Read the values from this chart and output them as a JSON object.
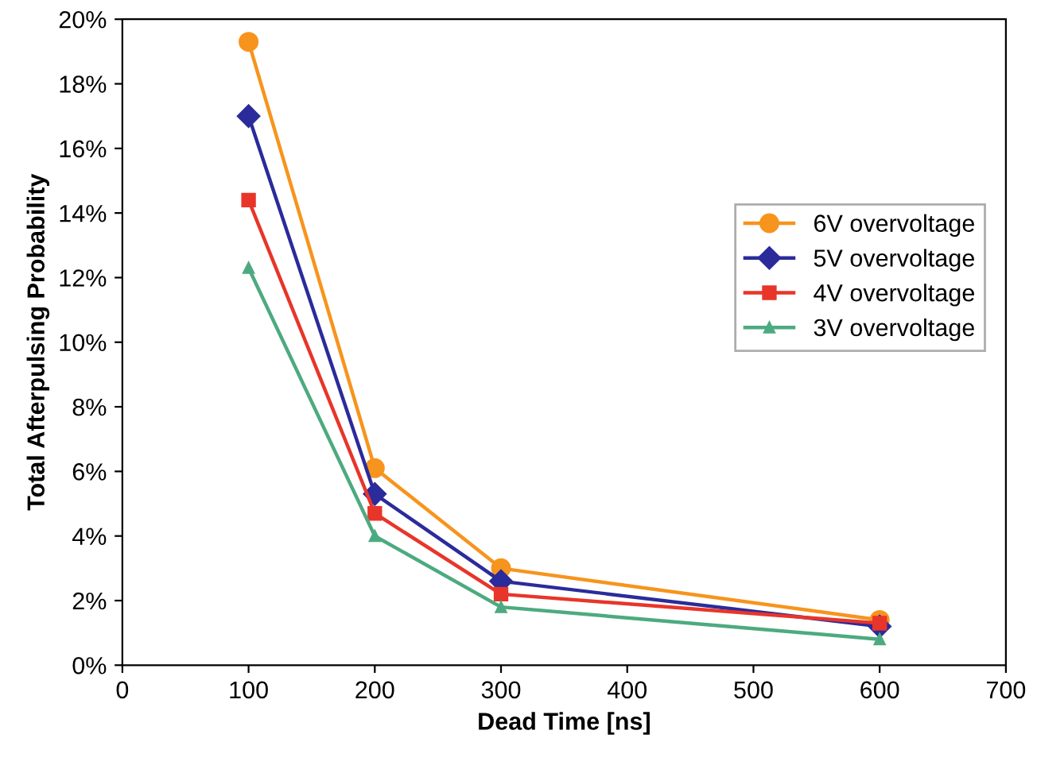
{
  "chart_data": {
    "type": "line",
    "xlabel": "Dead Time [ns]",
    "ylabel": "Total Afterpulsing Probability",
    "x": [
      100,
      200,
      300,
      600
    ],
    "series": [
      {
        "name": "6V overvoltage",
        "color": "#f7941d",
        "marker": "circle",
        "values": [
          19.3,
          6.1,
          3.0,
          1.4
        ]
      },
      {
        "name": "5V overvoltage",
        "color": "#2b2b9b",
        "marker": "diamond",
        "values": [
          17.0,
          5.3,
          2.6,
          1.2
        ]
      },
      {
        "name": "4V overvoltage",
        "color": "#e8352a",
        "marker": "square",
        "values": [
          14.4,
          4.7,
          2.2,
          1.3
        ]
      },
      {
        "name": "3V overvoltage",
        "color": "#4daa80",
        "marker": "triangle",
        "values": [
          12.3,
          4.0,
          1.8,
          0.8
        ]
      }
    ],
    "xlim": [
      0,
      700
    ],
    "xticks": [
      0,
      100,
      200,
      300,
      400,
      500,
      600,
      700
    ],
    "ylim": [
      0,
      20
    ],
    "yticks": [
      {
        "value": 0,
        "label": "0%"
      },
      {
        "value": 2,
        "label": "2%"
      },
      {
        "value": 4,
        "label": "4%"
      },
      {
        "value": 6,
        "label": "6%"
      },
      {
        "value": 8,
        "label": "8%"
      },
      {
        "value": 10,
        "label": "10%"
      },
      {
        "value": 12,
        "label": "12%"
      },
      {
        "value": 14,
        "label": "14%"
      },
      {
        "value": 16,
        "label": "16%"
      },
      {
        "value": 18,
        "label": "18%"
      },
      {
        "value": 20,
        "label": "20%"
      }
    ],
    "legend": "right",
    "grid": false,
    "line_style": "solid"
  }
}
